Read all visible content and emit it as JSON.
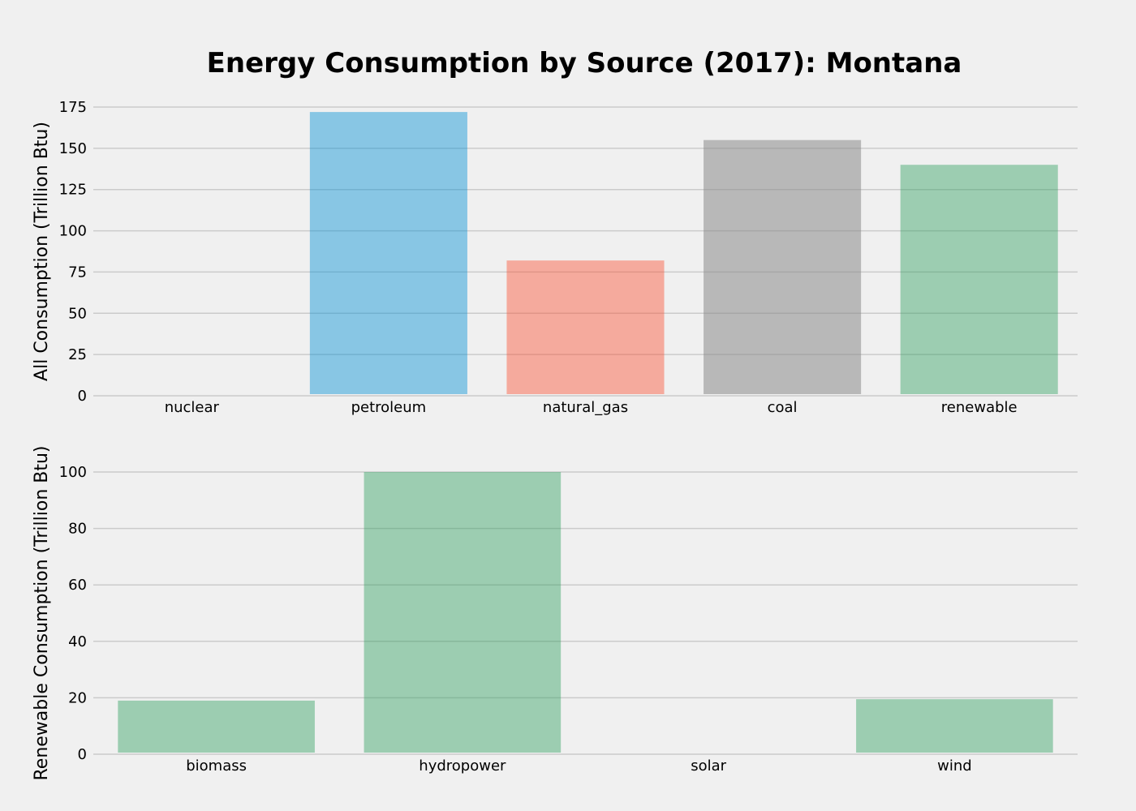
{
  "title": "Energy Consumption by Source (2017): Montana",
  "chart_data": [
    {
      "type": "bar",
      "categories": [
        "nuclear",
        "petroleum",
        "natural_gas",
        "coal",
        "renewable"
      ],
      "values": [
        0,
        172,
        82,
        155,
        140
      ],
      "colors": [
        "#008fd5",
        "#008fd5",
        "#fc4f30",
        "#8b8b8b",
        "#2fa05e"
      ],
      "ylabel": "All Consumption (Trillion Btu)",
      "xlabel": "",
      "ylim": [
        0,
        175
      ],
      "yticks": [
        0,
        25,
        50,
        75,
        100,
        125,
        150,
        175
      ],
      "grid": true
    },
    {
      "type": "bar",
      "categories": [
        "biomass",
        "hydropower",
        "solar",
        "wind"
      ],
      "values": [
        19,
        100,
        0,
        19.5
      ],
      "colors": [
        "#2fa05e",
        "#2fa05e",
        "#2fa05e",
        "#2fa05e"
      ],
      "ylabel": "Renewable Consumption (Trillion Btu)",
      "xlabel": "",
      "ylim": [
        0,
        100
      ],
      "yticks": [
        0,
        20,
        40,
        60,
        80,
        100
      ],
      "grid": true
    }
  ]
}
